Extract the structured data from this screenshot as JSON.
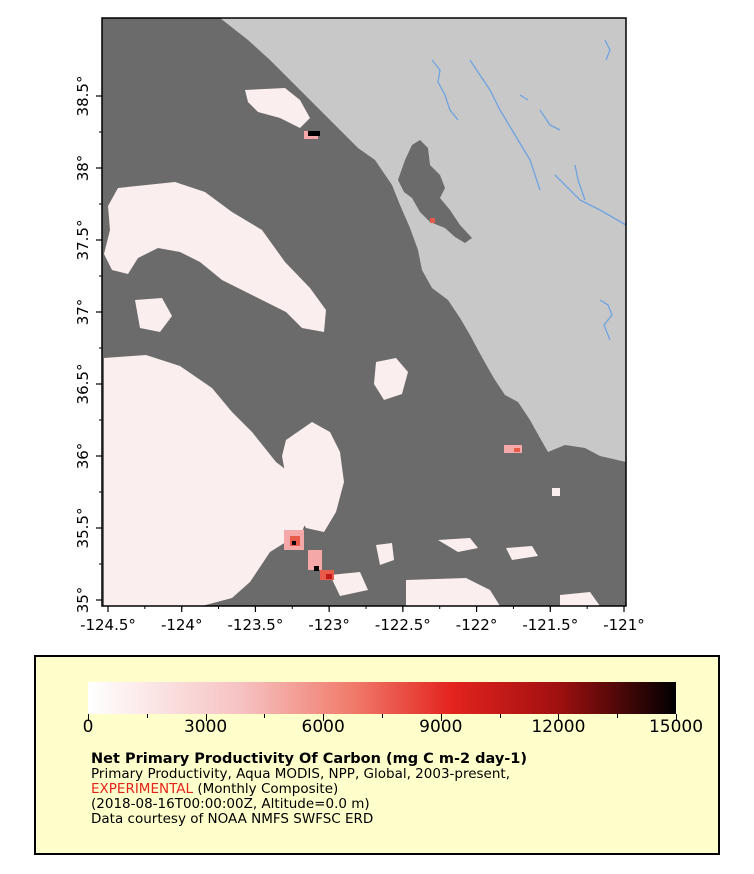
{
  "map": {
    "x_ticks": [
      "-124.5°",
      "-124°",
      "-123.5°",
      "-123°",
      "-122.5°",
      "-122°",
      "-121.5°",
      "-121°"
    ],
    "y_ticks": [
      "35°",
      "35.5°",
      "36°",
      "36.5°",
      "37°",
      "37.5°",
      "38°",
      "38.5°"
    ],
    "colors": {
      "ocean_no_data": "#6b6b6b",
      "land": "#c8c8c8",
      "rivers": "#6fa3e0",
      "low_productivity": "#fbeeee"
    }
  },
  "legend": {
    "colorbar_ticks": [
      "0",
      "3000",
      "6000",
      "9000",
      "12000",
      "15000"
    ],
    "colorbar_range": [
      0,
      15000
    ],
    "title": "Net Primary Productivity Of Carbon (mg C m-2 day-1)",
    "line1": "Primary Productivity, Aqua MODIS, NPP, Global, 2003-present,",
    "experimental": "EXPERIMENTAL",
    "line2_rest": " (Monthly Composite)",
    "line3": "(2018-08-16T00:00:00Z, Altitude=0.0 m)",
    "line4": "Data courtesy of NOAA NMFS SWFSC ERD"
  }
}
